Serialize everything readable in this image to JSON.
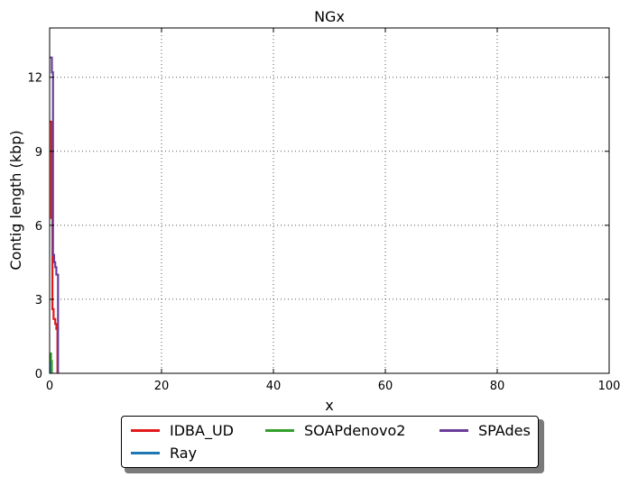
{
  "chart_data": {
    "type": "line",
    "title": "NGx",
    "xlabel": "x",
    "ylabel": "Contig length  (kbp)",
    "xlim": [
      0,
      100
    ],
    "ylim": [
      0,
      14
    ],
    "x_ticks": [
      "0",
      "20",
      "40",
      "60",
      "80",
      "100"
    ],
    "y_ticks": [
      "0",
      "3",
      "6",
      "9",
      "12"
    ],
    "grid": true,
    "legend_placement": "bottom-center",
    "series": [
      {
        "name": "IDBA_UD",
        "color": "#e31a1c",
        "x": [
          0,
          0.3,
          0.3,
          0.5,
          0.5,
          0.7,
          0.7,
          1.0,
          1.0,
          1.2,
          1.2,
          1.4,
          1.4
        ],
        "y": [
          10.2,
          10.2,
          6.3,
          6.3,
          2.6,
          2.6,
          2.2,
          2.2,
          2.0,
          2.0,
          1.8,
          1.8,
          0
        ]
      },
      {
        "name": "Ray",
        "color": "#1f78b4",
        "x": [
          0,
          0.15,
          0.15
        ],
        "y": [
          0.5,
          0.5,
          0
        ]
      },
      {
        "name": "SOAPdenovo2",
        "color": "#33a02c",
        "x": [
          0,
          0.25,
          0.25,
          0.4,
          0.4
        ],
        "y": [
          0.8,
          0.8,
          0.5,
          0.5,
          0
        ]
      },
      {
        "name": "SPAdes",
        "color": "#6a3d9a",
        "x": [
          0,
          0.4,
          0.4,
          0.6,
          0.6,
          0.8,
          0.8,
          1.0,
          1.0,
          1.2,
          1.2,
          1.5,
          1.5
        ],
        "y": [
          12.8,
          12.8,
          12.2,
          12.2,
          4.8,
          4.8,
          4.5,
          4.5,
          4.3,
          4.3,
          4.0,
          4.0,
          0
        ]
      }
    ]
  }
}
